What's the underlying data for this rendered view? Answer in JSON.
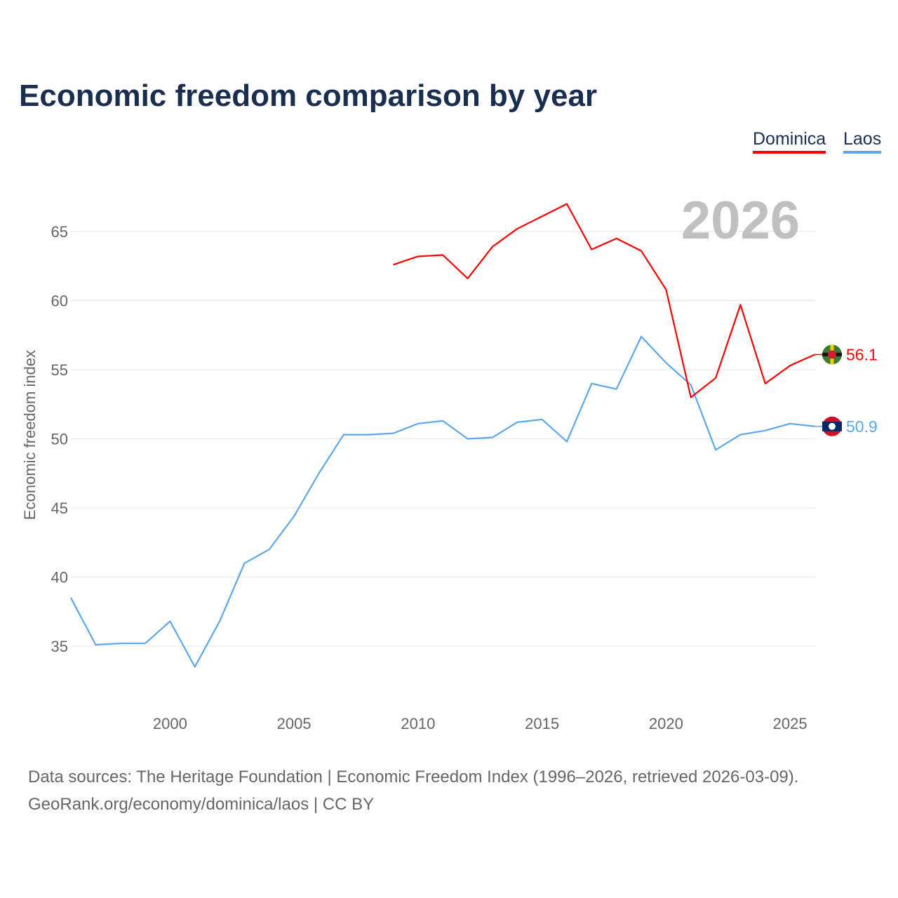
{
  "chart_data": {
    "type": "line",
    "title": "Economic freedom comparison by year",
    "xlabel": "",
    "ylabel": "Economic freedom index",
    "year_label": "2026",
    "xlim": [
      1996,
      2026
    ],
    "ylim": [
      31,
      68
    ],
    "x_ticks": [
      2000,
      2005,
      2010,
      2015,
      2020,
      2025
    ],
    "y_ticks": [
      35,
      40,
      45,
      50,
      55,
      60,
      65
    ],
    "grid": true,
    "legend_position": "top-right",
    "series": [
      {
        "name": "Dominica",
        "color": "#ff0000",
        "end_label": "56.1",
        "x": [
          2009,
          2010,
          2011,
          2012,
          2013,
          2014,
          2015,
          2016,
          2017,
          2018,
          2019,
          2020,
          2021,
          2022,
          2023,
          2024,
          2025,
          2026
        ],
        "values": [
          62.6,
          63.2,
          63.3,
          61.6,
          63.9,
          65.2,
          66.1,
          67.0,
          63.7,
          64.5,
          63.6,
          60.8,
          53.0,
          54.4,
          59.7,
          54.0,
          55.3,
          56.1
        ]
      },
      {
        "name": "Laos",
        "color": "#5ba8ee",
        "end_label": "50.9",
        "x": [
          1996,
          1997,
          1998,
          1999,
          2000,
          2001,
          2002,
          2003,
          2004,
          2005,
          2006,
          2007,
          2008,
          2009,
          2010,
          2011,
          2012,
          2013,
          2014,
          2015,
          2016,
          2017,
          2018,
          2019,
          2020,
          2021,
          2022,
          2023,
          2024,
          2025,
          2026
        ],
        "values": [
          38.5,
          35.1,
          35.2,
          35.2,
          36.8,
          33.5,
          36.8,
          41.0,
          42.0,
          44.4,
          47.5,
          50.3,
          50.3,
          50.4,
          51.1,
          51.3,
          50.0,
          50.1,
          51.2,
          51.4,
          49.8,
          54.0,
          53.6,
          57.4,
          55.5,
          53.9,
          49.2,
          50.3,
          50.6,
          51.1,
          50.9
        ]
      }
    ]
  },
  "footer": {
    "line1": "Data sources: The Heritage Foundation | Economic Freedom Index (1996–2026, retrieved 2026-03-09).",
    "line2": "GeoRank.org/economy/dominica/laos | CC BY"
  }
}
